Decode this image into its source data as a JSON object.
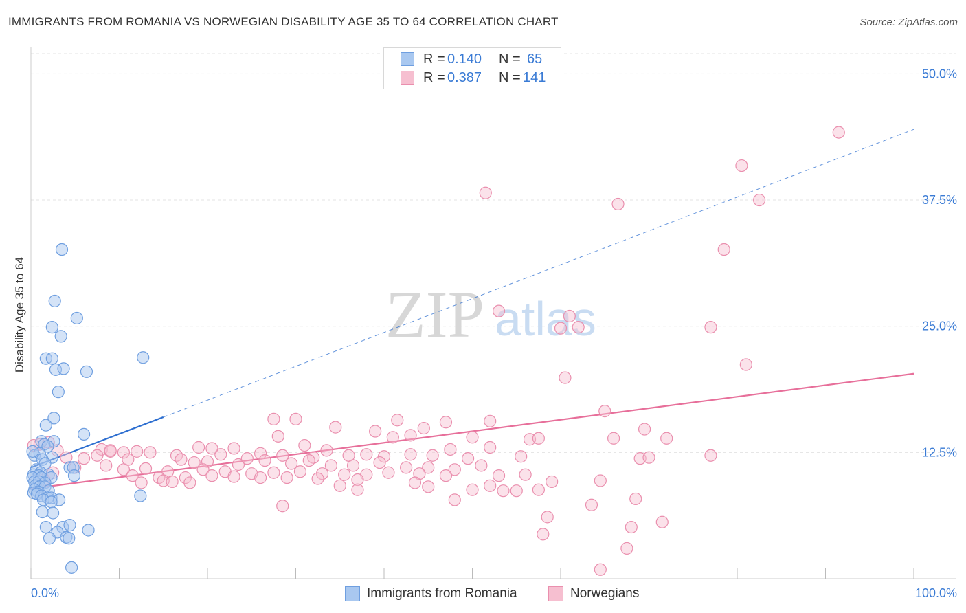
{
  "title": "IMMIGRANTS FROM ROMANIA VS NORWEGIAN DISABILITY AGE 35 TO 64 CORRELATION CHART",
  "source": "Source: ZipAtlas.com",
  "watermark": {
    "zip": "ZIP",
    "atlas": "atlas"
  },
  "legend": {
    "series1": {
      "r_label": "R = ",
      "r_value": "0.140",
      "n_label": "N = ",
      "n_value": "65"
    },
    "series2": {
      "r_label": "R = ",
      "r_value": "0.387",
      "n_label": "N = ",
      "n_value": "141"
    }
  },
  "bottom_legend": {
    "series1": "Immigrants from Romania",
    "series2": "Norwegians"
  },
  "colors": {
    "blue_fill": "#a9c8f0",
    "blue_stroke": "#6f9fe0",
    "blue_line": "#2e6fd0",
    "pink_fill": "#f6bfd0",
    "pink_stroke": "#ea8fae",
    "pink_line": "#e76f9a",
    "tick_label": "#3a7bd5",
    "grid": "#e3e3e3"
  },
  "chart_data": {
    "type": "scatter",
    "title": "IMMIGRANTS FROM ROMANIA VS NORWEGIAN DISABILITY AGE 35 TO 64 CORRELATION CHART",
    "xlabel": "",
    "ylabel": "Disability Age 35 to 64",
    "xlim": [
      0,
      100
    ],
    "ylim": [
      0,
      52
    ],
    "x_tick_labels": [
      "0.0%",
      "100.0%"
    ],
    "y_ticks": [
      12.5,
      25.0,
      37.5,
      50.0
    ],
    "y_tick_labels": [
      "12.5%",
      "25.0%",
      "37.5%",
      "50.0%"
    ],
    "grid": true,
    "series": [
      {
        "name": "Immigrants from Romania",
        "R": 0.14,
        "N": 65,
        "trend_solid": [
          [
            0,
            11.0
          ],
          [
            15,
            16.0
          ]
        ],
        "trend_dashed": [
          [
            15,
            16.0
          ],
          [
            100,
            44.5
          ]
        ],
        "points": [
          [
            3.5,
            32.6
          ],
          [
            2.7,
            27.5
          ],
          [
            5.2,
            25.8
          ],
          [
            2.4,
            24.9
          ],
          [
            3.4,
            24.0
          ],
          [
            12.7,
            21.9
          ],
          [
            1.7,
            21.8
          ],
          [
            2.4,
            21.8
          ],
          [
            2.8,
            20.7
          ],
          [
            3.7,
            20.8
          ],
          [
            6.3,
            20.5
          ],
          [
            3.1,
            18.5
          ],
          [
            2.6,
            15.9
          ],
          [
            1.7,
            15.2
          ],
          [
            6.0,
            14.3
          ],
          [
            1.2,
            13.6
          ],
          [
            2.6,
            13.6
          ],
          [
            1.5,
            13.3
          ],
          [
            1.9,
            13.1
          ],
          [
            0.4,
            12.2
          ],
          [
            1.0,
            12.4
          ],
          [
            2.4,
            12.0
          ],
          [
            1.3,
            11.8
          ],
          [
            1.6,
            11.4
          ],
          [
            4.4,
            11.0
          ],
          [
            4.8,
            11.0
          ],
          [
            0.6,
            10.8
          ],
          [
            1.1,
            10.5
          ],
          [
            0.3,
            10.3
          ],
          [
            0.9,
            10.2
          ],
          [
            2.0,
            10.3
          ],
          [
            0.2,
            10.0
          ],
          [
            1.2,
            10.0
          ],
          [
            2.3,
            10.0
          ],
          [
            4.9,
            10.2
          ],
          [
            0.4,
            9.6
          ],
          [
            0.9,
            9.6
          ],
          [
            1.6,
            9.5
          ],
          [
            0.5,
            9.2
          ],
          [
            1.0,
            9.1
          ],
          [
            1.6,
            9.1
          ],
          [
            0.4,
            8.8
          ],
          [
            0.8,
            8.6
          ],
          [
            2.0,
            8.7
          ],
          [
            0.3,
            8.5
          ],
          [
            0.7,
            8.4
          ],
          [
            1.2,
            8.2
          ],
          [
            1.9,
            8.0
          ],
          [
            2.3,
            8.0
          ],
          [
            3.2,
            7.8
          ],
          [
            12.4,
            8.2
          ],
          [
            1.4,
            7.8
          ],
          [
            2.3,
            7.6
          ],
          [
            1.3,
            6.6
          ],
          [
            2.5,
            6.5
          ],
          [
            1.7,
            5.1
          ],
          [
            3.6,
            5.1
          ],
          [
            4.4,
            5.3
          ],
          [
            6.5,
            4.8
          ],
          [
            3.0,
            4.6
          ],
          [
            2.1,
            4.0
          ],
          [
            4.0,
            4.1
          ],
          [
            4.3,
            4.0
          ],
          [
            4.6,
            1.1
          ],
          [
            0.2,
            12.6
          ]
        ]
      },
      {
        "name": "Norwegians",
        "R": 0.387,
        "N": 141,
        "trend": [
          [
            0,
            8.9
          ],
          [
            100,
            20.3
          ]
        ],
        "points": [
          [
            91.5,
            44.2
          ],
          [
            80.5,
            40.9
          ],
          [
            51.5,
            38.2
          ],
          [
            66.5,
            37.1
          ],
          [
            82.5,
            37.5
          ],
          [
            78.5,
            32.6
          ],
          [
            53.0,
            26.5
          ],
          [
            61.0,
            26.0
          ],
          [
            60.0,
            24.8
          ],
          [
            62.0,
            24.9
          ],
          [
            77.0,
            24.9
          ],
          [
            81.0,
            21.2
          ],
          [
            60.5,
            19.9
          ],
          [
            65.0,
            16.6
          ],
          [
            27.5,
            15.8
          ],
          [
            30.0,
            15.8
          ],
          [
            41.5,
            15.7
          ],
          [
            52.0,
            15.6
          ],
          [
            47.0,
            15.5
          ],
          [
            34.5,
            15.0
          ],
          [
            44.5,
            14.9
          ],
          [
            69.5,
            14.8
          ],
          [
            39.0,
            14.6
          ],
          [
            43.0,
            14.2
          ],
          [
            28.0,
            14.1
          ],
          [
            41.0,
            14.0
          ],
          [
            50.0,
            14.0
          ],
          [
            56.5,
            13.8
          ],
          [
            57.5,
            13.9
          ],
          [
            66.0,
            13.9
          ],
          [
            72.0,
            13.9
          ],
          [
            1.0,
            13.3
          ],
          [
            2.0,
            13.5
          ],
          [
            19.0,
            13.0
          ],
          [
            23.0,
            12.9
          ],
          [
            31.0,
            13.2
          ],
          [
            33.5,
            12.7
          ],
          [
            47.5,
            12.8
          ],
          [
            52.0,
            13.0
          ],
          [
            3.0,
            12.7
          ],
          [
            8.0,
            12.8
          ],
          [
            9.0,
            12.6
          ],
          [
            10.5,
            12.5
          ],
          [
            13.5,
            12.5
          ],
          [
            16.5,
            12.2
          ],
          [
            21.5,
            12.3
          ],
          [
            26.0,
            12.4
          ],
          [
            28.5,
            12.2
          ],
          [
            32.0,
            12.0
          ],
          [
            36.0,
            12.2
          ],
          [
            38.0,
            12.3
          ],
          [
            40.0,
            12.1
          ],
          [
            43.0,
            12.3
          ],
          [
            45.5,
            12.2
          ],
          [
            49.5,
            11.9
          ],
          [
            55.5,
            12.1
          ],
          [
            69.0,
            11.9
          ],
          [
            70.0,
            12.0
          ],
          [
            77.0,
            12.2
          ],
          [
            4.0,
            12.0
          ],
          [
            6.0,
            11.9
          ],
          [
            7.5,
            12.2
          ],
          [
            11.0,
            11.8
          ],
          [
            17.0,
            11.8
          ],
          [
            18.5,
            11.5
          ],
          [
            20.0,
            11.6
          ],
          [
            23.5,
            11.3
          ],
          [
            24.5,
            11.9
          ],
          [
            26.5,
            11.7
          ],
          [
            29.5,
            11.4
          ],
          [
            31.5,
            11.7
          ],
          [
            34.0,
            11.2
          ],
          [
            36.5,
            11.2
          ],
          [
            39.5,
            11.5
          ],
          [
            42.5,
            11.0
          ],
          [
            45.0,
            11.0
          ],
          [
            48.0,
            10.8
          ],
          [
            51.0,
            11.2
          ],
          [
            5.0,
            11.0
          ],
          [
            8.5,
            11.2
          ],
          [
            10.5,
            10.8
          ],
          [
            13.0,
            10.9
          ],
          [
            15.5,
            10.6
          ],
          [
            19.5,
            10.8
          ],
          [
            22.0,
            10.6
          ],
          [
            25.0,
            10.4
          ],
          [
            27.5,
            10.5
          ],
          [
            30.5,
            10.6
          ],
          [
            33.0,
            10.4
          ],
          [
            35.5,
            10.3
          ],
          [
            38.0,
            10.3
          ],
          [
            40.5,
            10.5
          ],
          [
            44.0,
            10.4
          ],
          [
            47.0,
            10.2
          ],
          [
            53.0,
            10.2
          ],
          [
            56.0,
            10.3
          ],
          [
            2.5,
            10.5
          ],
          [
            11.5,
            10.2
          ],
          [
            14.5,
            10.0
          ],
          [
            17.5,
            10.0
          ],
          [
            20.5,
            10.2
          ],
          [
            23.0,
            10.1
          ],
          [
            26.0,
            10.0
          ],
          [
            29.0,
            10.0
          ],
          [
            32.5,
            9.9
          ],
          [
            37.0,
            9.8
          ],
          [
            43.5,
            9.5
          ],
          [
            12.5,
            9.5
          ],
          [
            15.0,
            9.7
          ],
          [
            16.0,
            9.6
          ],
          [
            18.0,
            9.5
          ],
          [
            35.0,
            9.2
          ],
          [
            37.0,
            8.8
          ],
          [
            45.0,
            9.1
          ],
          [
            52.0,
            9.2
          ],
          [
            53.5,
            8.7
          ],
          [
            59.0,
            9.6
          ],
          [
            64.5,
            9.7
          ],
          [
            50.0,
            8.8
          ],
          [
            55.0,
            8.7
          ],
          [
            57.5,
            8.8
          ],
          [
            48.0,
            7.8
          ],
          [
            68.5,
            7.9
          ],
          [
            63.5,
            7.3
          ],
          [
            28.5,
            7.2
          ],
          [
            58.5,
            6.1
          ],
          [
            71.5,
            5.6
          ],
          [
            68.0,
            5.1
          ],
          [
            58.0,
            4.4
          ],
          [
            67.5,
            3.0
          ],
          [
            64.5,
            0.9
          ],
          [
            9.0,
            12.7
          ],
          [
            12.0,
            12.6
          ],
          [
            20.5,
            12.9
          ],
          [
            1.5,
            9.8
          ],
          [
            0.3,
            13.2
          ]
        ]
      }
    ]
  }
}
